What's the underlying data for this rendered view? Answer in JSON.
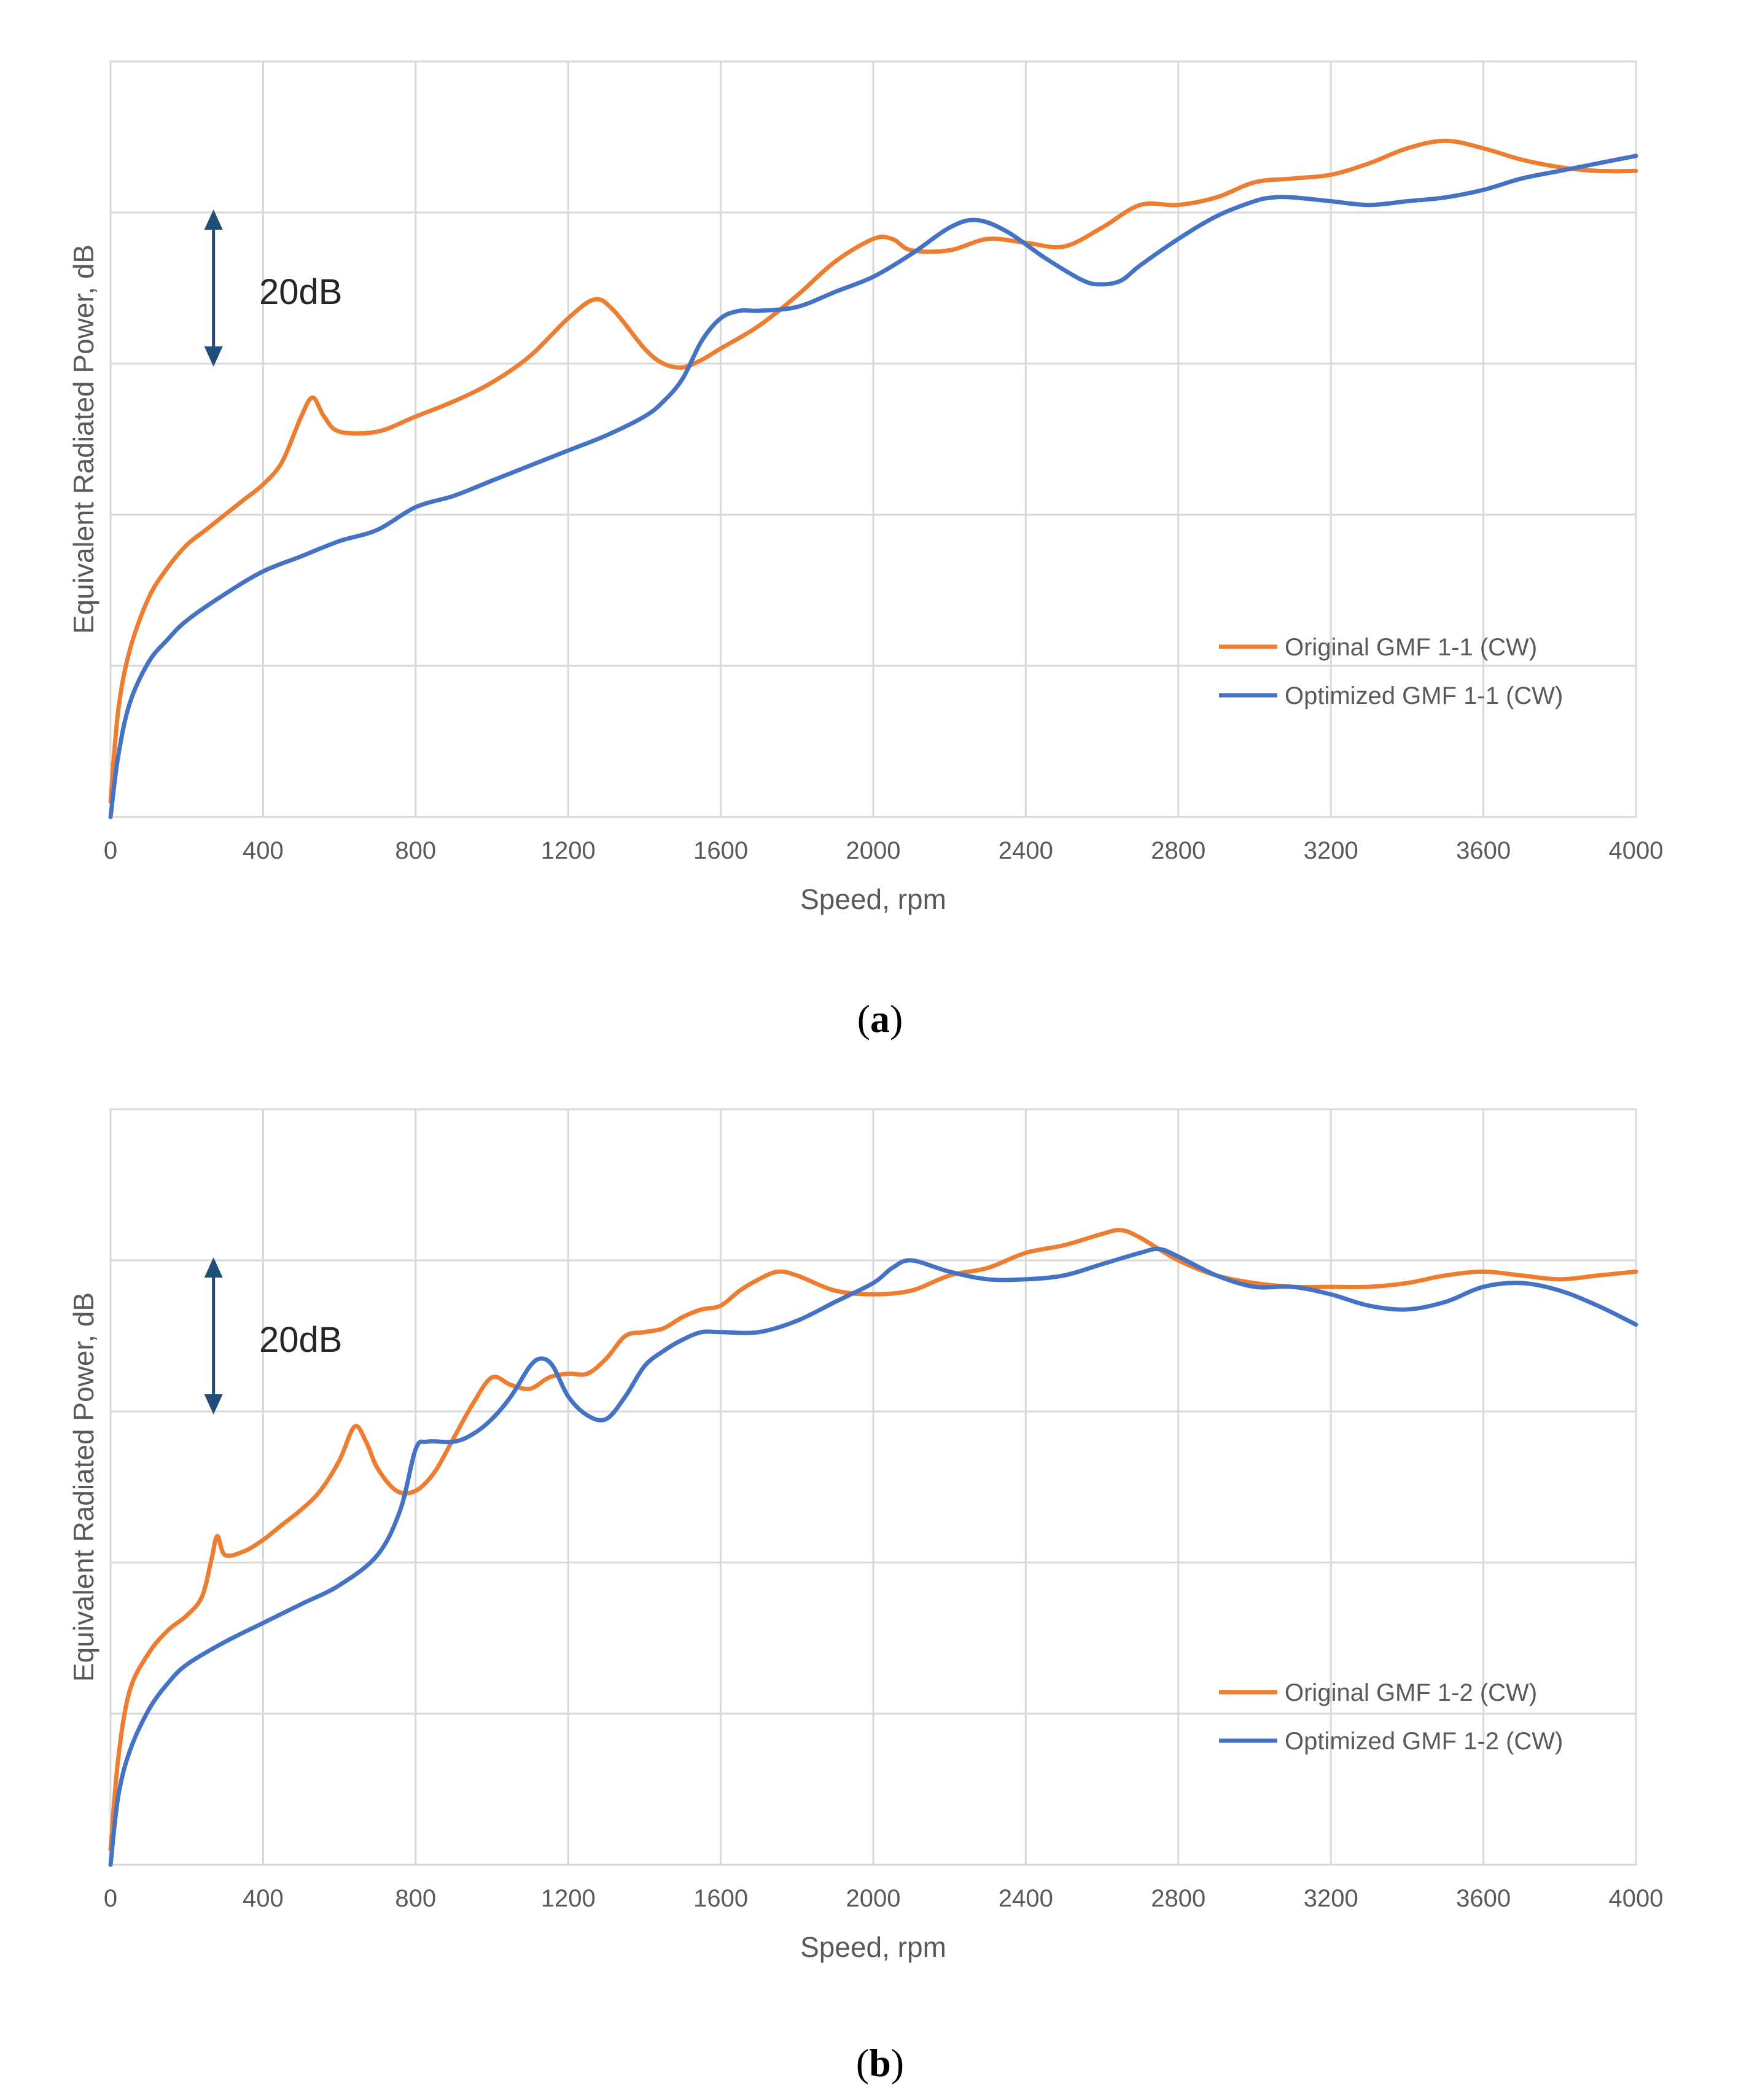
{
  "chart_data": [
    {
      "panel": "a",
      "type": "line",
      "xlabel": "Speed, rpm",
      "ylabel": "Equivalent Radiated Power, dB",
      "xlim": [
        0,
        4000
      ],
      "ylim": [
        0,
        100
      ],
      "x_ticks": [
        "0",
        "400",
        "800",
        "1200",
        "1600",
        "2000",
        "2400",
        "2800",
        "3200",
        "3600",
        "4000"
      ],
      "y_gridlines": [
        20,
        40,
        60,
        80
      ],
      "y_tick_labels_shown": false,
      "annotation": {
        "label": "20dB",
        "from": 60,
        "to": 80,
        "x": 270
      },
      "legend_position": "bottom-right",
      "series": [
        {
          "name": "Original GMF 1-1 (CW)",
          "color": "#ED7D31",
          "points": [
            [
              0,
              2
            ],
            [
              20,
              14
            ],
            [
              50,
              22
            ],
            [
              100,
              29
            ],
            [
              150,
              33
            ],
            [
              200,
              36
            ],
            [
              250,
              38
            ],
            [
              300,
              40
            ],
            [
              350,
              42
            ],
            [
              400,
              44
            ],
            [
              450,
              47
            ],
            [
              500,
              53
            ],
            [
              530,
              55.5
            ],
            [
              560,
              53
            ],
            [
              600,
              51
            ],
            [
              700,
              51
            ],
            [
              800,
              53
            ],
            [
              900,
              55
            ],
            [
              1000,
              57.5
            ],
            [
              1100,
              61
            ],
            [
              1200,
              66
            ],
            [
              1270,
              68.5
            ],
            [
              1320,
              67
            ],
            [
              1400,
              62
            ],
            [
              1450,
              60
            ],
            [
              1500,
              59.5
            ],
            [
              1550,
              60.5
            ],
            [
              1600,
              62
            ],
            [
              1700,
              65
            ],
            [
              1800,
              69
            ],
            [
              1900,
              73.5
            ],
            [
              2000,
              76.5
            ],
            [
              2050,
              76.5
            ],
            [
              2100,
              75
            ],
            [
              2200,
              75
            ],
            [
              2300,
              76.5
            ],
            [
              2400,
              76
            ],
            [
              2500,
              75.5
            ],
            [
              2600,
              78
            ],
            [
              2700,
              81
            ],
            [
              2800,
              81
            ],
            [
              2900,
              82
            ],
            [
              3000,
              84
            ],
            [
              3100,
              84.5
            ],
            [
              3200,
              85
            ],
            [
              3300,
              86.5
            ],
            [
              3400,
              88.5
            ],
            [
              3500,
              89.5
            ],
            [
              3600,
              88.5
            ],
            [
              3700,
              87
            ],
            [
              3800,
              86
            ],
            [
              3900,
              85.5
            ],
            [
              4000,
              85.5
            ]
          ]
        },
        {
          "name": "Optimized GMF 1-1 (CW)",
          "color": "#4472C4",
          "points": [
            [
              0,
              0
            ],
            [
              20,
              8
            ],
            [
              50,
              15
            ],
            [
              100,
              20.5
            ],
            [
              150,
              23.5
            ],
            [
              200,
              26
            ],
            [
              300,
              29.5
            ],
            [
              400,
              32.5
            ],
            [
              500,
              34.5
            ],
            [
              600,
              36.5
            ],
            [
              700,
              38
            ],
            [
              800,
              41
            ],
            [
              900,
              42.5
            ],
            [
              1000,
              44.5
            ],
            [
              1100,
              46.5
            ],
            [
              1200,
              48.5
            ],
            [
              1300,
              50.5
            ],
            [
              1400,
              53
            ],
            [
              1450,
              55
            ],
            [
              1500,
              58
            ],
            [
              1550,
              63
            ],
            [
              1600,
              66
            ],
            [
              1650,
              67
            ],
            [
              1700,
              67
            ],
            [
              1800,
              67.5
            ],
            [
              1900,
              69.5
            ],
            [
              2000,
              71.5
            ],
            [
              2100,
              74.5
            ],
            [
              2200,
              78
            ],
            [
              2270,
              79
            ],
            [
              2350,
              77.5
            ],
            [
              2450,
              74
            ],
            [
              2550,
              71
            ],
            [
              2600,
              70.5
            ],
            [
              2650,
              71
            ],
            [
              2700,
              73
            ],
            [
              2800,
              76.5
            ],
            [
              2900,
              79.5
            ],
            [
              3000,
              81.5
            ],
            [
              3050,
              82
            ],
            [
              3100,
              82
            ],
            [
              3200,
              81.5
            ],
            [
              3300,
              81
            ],
            [
              3400,
              81.5
            ],
            [
              3500,
              82
            ],
            [
              3600,
              83
            ],
            [
              3700,
              84.5
            ],
            [
              3800,
              85.5
            ],
            [
              3900,
              86.5
            ],
            [
              4000,
              87.5
            ]
          ]
        }
      ]
    },
    {
      "panel": "b",
      "type": "line",
      "xlabel": "Speed, rpm",
      "ylabel": "Equivalent Radiated Power, dB",
      "xlim": [
        0,
        4000
      ],
      "ylim": [
        0,
        100
      ],
      "x_ticks": [
        "0",
        "400",
        "800",
        "1200",
        "1600",
        "2000",
        "2400",
        "2800",
        "3200",
        "3600",
        "4000"
      ],
      "y_gridlines": [
        20,
        40,
        60,
        80
      ],
      "y_tick_labels_shown": false,
      "annotation": {
        "label": "20dB",
        "from": 60,
        "to": 80,
        "x": 270
      },
      "legend_position": "bottom-right",
      "series": [
        {
          "name": "Original GMF 1-2 (CW)",
          "color": "#ED7D31",
          "points": [
            [
              0,
              2
            ],
            [
              20,
              14
            ],
            [
              50,
              23
            ],
            [
              100,
              28
            ],
            [
              150,
              31
            ],
            [
              200,
              33
            ],
            [
              240,
              35.5
            ],
            [
              265,
              40.5
            ],
            [
              280,
              43.5
            ],
            [
              300,
              41
            ],
            [
              350,
              41.5
            ],
            [
              400,
              43
            ],
            [
              450,
              45
            ],
            [
              500,
              47
            ],
            [
              550,
              49.5
            ],
            [
              600,
              53.5
            ],
            [
              640,
              58
            ],
            [
              670,
              56
            ],
            [
              700,
              52.5
            ],
            [
              750,
              49.5
            ],
            [
              800,
              49.5
            ],
            [
              850,
              52
            ],
            [
              900,
              56.5
            ],
            [
              950,
              61
            ],
            [
              1000,
              64.5
            ],
            [
              1050,
              63.5
            ],
            [
              1100,
              63
            ],
            [
              1150,
              64.5
            ],
            [
              1200,
              65
            ],
            [
              1250,
              65
            ],
            [
              1300,
              67
            ],
            [
              1350,
              70
            ],
            [
              1400,
              70.5
            ],
            [
              1450,
              71
            ],
            [
              1500,
              72.5
            ],
            [
              1550,
              73.5
            ],
            [
              1600,
              74
            ],
            [
              1650,
              76
            ],
            [
              1700,
              77.5
            ],
            [
              1750,
              78.5
            ],
            [
              1800,
              78
            ],
            [
              1900,
              76
            ],
            [
              2000,
              75.5
            ],
            [
              2100,
              76
            ],
            [
              2200,
              78
            ],
            [
              2300,
              79
            ],
            [
              2400,
              81
            ],
            [
              2500,
              82
            ],
            [
              2600,
              83.5
            ],
            [
              2650,
              84
            ],
            [
              2700,
              83
            ],
            [
              2800,
              80
            ],
            [
              2900,
              78
            ],
            [
              3000,
              77
            ],
            [
              3100,
              76.5
            ],
            [
              3200,
              76.5
            ],
            [
              3300,
              76.5
            ],
            [
              3400,
              77
            ],
            [
              3500,
              78
            ],
            [
              3600,
              78.5
            ],
            [
              3700,
              78
            ],
            [
              3800,
              77.5
            ],
            [
              3900,
              78
            ],
            [
              4000,
              78.5
            ]
          ]
        },
        {
          "name": "Optimized GMF 1-2 (CW)",
          "color": "#4472C4",
          "points": [
            [
              0,
              0
            ],
            [
              20,
              9
            ],
            [
              50,
              15
            ],
            [
              100,
              20.5
            ],
            [
              150,
              24
            ],
            [
              200,
              26.5
            ],
            [
              300,
              29.5
            ],
            [
              400,
              32
            ],
            [
              500,
              34.5
            ],
            [
              600,
              37
            ],
            [
              700,
              41
            ],
            [
              760,
              47
            ],
            [
              800,
              55
            ],
            [
              830,
              56
            ],
            [
              900,
              56
            ],
            [
              950,
              57
            ],
            [
              1000,
              59
            ],
            [
              1050,
              62
            ],
            [
              1100,
              66
            ],
            [
              1130,
              67
            ],
            [
              1160,
              66
            ],
            [
              1200,
              62
            ],
            [
              1250,
              59.5
            ],
            [
              1300,
              59
            ],
            [
              1350,
              62
            ],
            [
              1400,
              66
            ],
            [
              1450,
              68
            ],
            [
              1500,
              69.5
            ],
            [
              1550,
              70.5
            ],
            [
              1600,
              70.5
            ],
            [
              1700,
              70.5
            ],
            [
              1800,
              72
            ],
            [
              1900,
              74.5
            ],
            [
              2000,
              77
            ],
            [
              2050,
              79
            ],
            [
              2100,
              80
            ],
            [
              2200,
              78.5
            ],
            [
              2300,
              77.5
            ],
            [
              2400,
              77.5
            ],
            [
              2500,
              78
            ],
            [
              2600,
              79.5
            ],
            [
              2700,
              81
            ],
            [
              2750,
              81.5
            ],
            [
              2800,
              80.5
            ],
            [
              2900,
              78
            ],
            [
              3000,
              76.5
            ],
            [
              3100,
              76.5
            ],
            [
              3200,
              75.5
            ],
            [
              3300,
              74
            ],
            [
              3400,
              73.5
            ],
            [
              3500,
              74.5
            ],
            [
              3600,
              76.5
            ],
            [
              3700,
              77
            ],
            [
              3800,
              76
            ],
            [
              3900,
              74
            ],
            [
              4000,
              71.5
            ]
          ]
        }
      ]
    }
  ],
  "captions": [
    {
      "open": "(",
      "letter": "a",
      "close": ")"
    },
    {
      "open": "(",
      "letter": "b",
      "close": ")"
    }
  ]
}
